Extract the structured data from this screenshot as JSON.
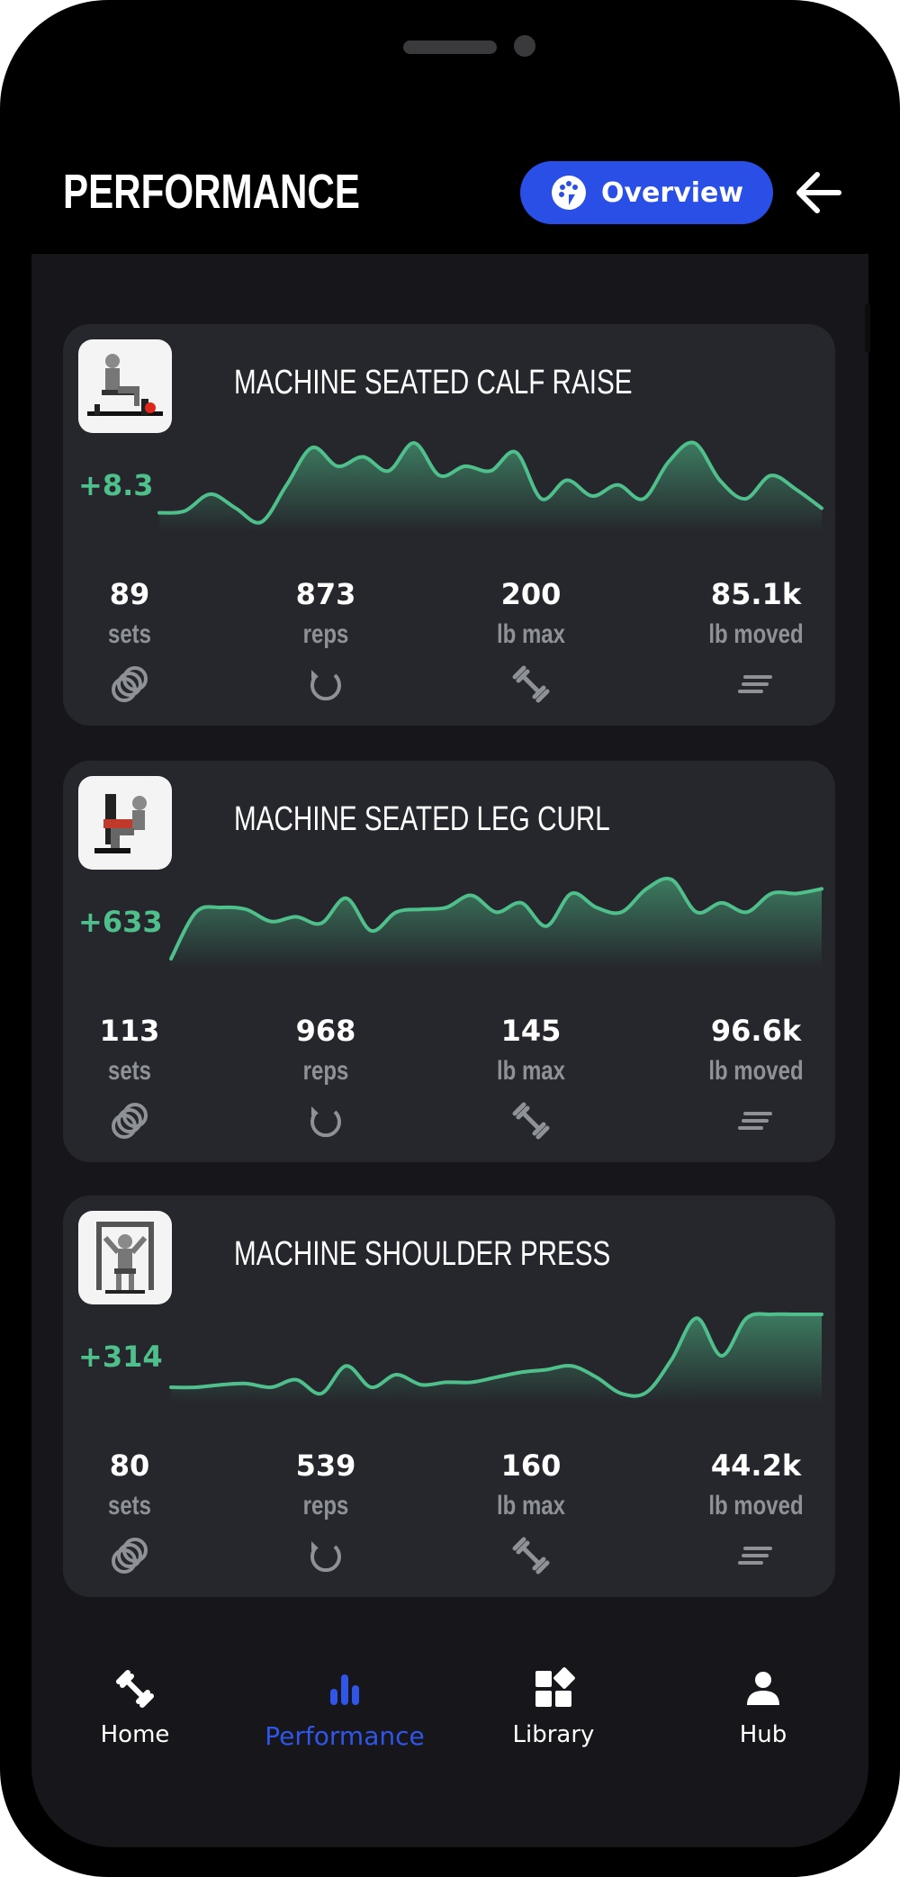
{
  "header": {
    "title": "PERFORMANCE",
    "overview_label": "Overview",
    "accent_color": "#2a4fe6"
  },
  "exercises": [
    {
      "name": "MACHINE SEATED CALF RAISE",
      "delta": "+8.3",
      "trend_color": "#4fbf8b",
      "trend": [
        1.0,
        1.2,
        3.0,
        1.5,
        0.0,
        4.0,
        8.0,
        6.0,
        7.0,
        5.5,
        8.5,
        5.0,
        6.0,
        5.5,
        7.5,
        2.5,
        4.5,
        2.8,
        4.0,
        2.5,
        6.5,
        8.5,
        4.5,
        2.5,
        5.0,
        3.5,
        1.5
      ],
      "stats": [
        {
          "value": "89",
          "unit": "sets",
          "icon": "rings-icon"
        },
        {
          "value": "873",
          "unit": "reps",
          "icon": "refresh-icon"
        },
        {
          "value": "200",
          "unit": "lb max",
          "icon": "dumbbell-icon"
        },
        {
          "value": "85.1k",
          "unit": "lb moved",
          "icon": "lines-icon"
        }
      ]
    },
    {
      "name": "MACHINE SEATED LEG CURL",
      "delta": "+633",
      "trend_color": "#4fbf8b",
      "trend": [
        0.0,
        5.0,
        5.5,
        5.3,
        4.0,
        4.5,
        3.8,
        6.5,
        3.0,
        5.0,
        5.3,
        5.5,
        6.8,
        5.0,
        6.0,
        3.5,
        7.0,
        5.5,
        5.0,
        7.5,
        8.5,
        5.0,
        6.0,
        5.0,
        7.0,
        7.0,
        7.5
      ],
      "stats": [
        {
          "value": "113",
          "unit": "sets",
          "icon": "rings-icon"
        },
        {
          "value": "968",
          "unit": "reps",
          "icon": "refresh-icon"
        },
        {
          "value": "145",
          "unit": "lb max",
          "icon": "dumbbell-icon"
        },
        {
          "value": "96.6k",
          "unit": "lb moved",
          "icon": "lines-icon"
        }
      ]
    },
    {
      "name": "MACHINE SHOULDER PRESS",
      "delta": "+314",
      "trend_color": "#4fbf8b",
      "trend": [
        1.0,
        1.0,
        1.2,
        1.3,
        1.0,
        1.6,
        0.5,
        2.7,
        1.0,
        2.0,
        1.2,
        1.4,
        1.4,
        1.8,
        2.2,
        2.4,
        2.7,
        1.8,
        0.5,
        0.6,
        3.2,
        6.5,
        3.5,
        6.5,
        6.8,
        6.8,
        6.8
      ],
      "stats": [
        {
          "value": "80",
          "unit": "sets",
          "icon": "rings-icon"
        },
        {
          "value": "539",
          "unit": "reps",
          "icon": "refresh-icon"
        },
        {
          "value": "160",
          "unit": "lb max",
          "icon": "dumbbell-icon"
        },
        {
          "value": "44.2k",
          "unit": "lb moved",
          "icon": "lines-icon"
        }
      ]
    }
  ],
  "tabs": [
    {
      "label": "Home",
      "icon": "dumbbell-icon",
      "active": false
    },
    {
      "label": "Performance",
      "icon": "bar-chart-icon",
      "active": true
    },
    {
      "label": "Library",
      "icon": "grid-icon",
      "active": false
    },
    {
      "label": "Hub",
      "icon": "person-icon",
      "active": false
    }
  ]
}
